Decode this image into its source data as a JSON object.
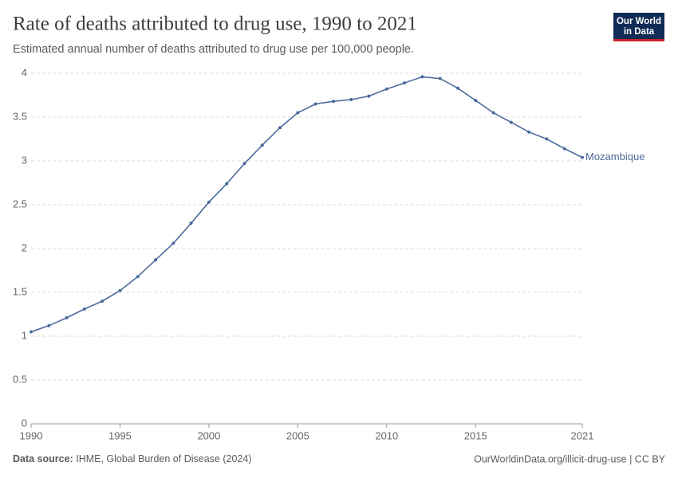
{
  "chart_data": {
    "type": "line",
    "title": "Rate of deaths attributed to drug use, 1990 to 2021",
    "subtitle": "Estimated annual number of deaths attributed to drug use per 100,000 people.",
    "source_label": "Data source:",
    "source": "IHME, Global Burden of Disease (2024)",
    "url": "OurWorldinData.org/illicit-drug-use | CC BY",
    "logo": [
      "Our World",
      "in Data"
    ],
    "x": [
      1990,
      1991,
      1992,
      1993,
      1994,
      1995,
      1996,
      1997,
      1998,
      1999,
      2000,
      2001,
      2002,
      2003,
      2004,
      2005,
      2006,
      2007,
      2008,
      2009,
      2010,
      2011,
      2012,
      2013,
      2014,
      2015,
      2016,
      2017,
      2018,
      2019,
      2020,
      2021
    ],
    "series": [
      {
        "name": "Mozambique",
        "color": "#4c6a9c",
        "values": [
          1.05,
          1.12,
          1.21,
          1.31,
          1.4,
          1.52,
          1.68,
          1.87,
          2.06,
          2.29,
          2.53,
          2.74,
          2.97,
          3.18,
          3.38,
          3.55,
          3.65,
          3.68,
          3.7,
          3.74,
          3.82,
          3.89,
          3.96,
          3.94,
          3.83,
          3.69,
          3.55,
          3.44,
          3.33,
          3.25,
          3.14,
          3.04
        ]
      }
    ],
    "xlim": [
      1990,
      2021
    ],
    "xticks": [
      1990,
      1995,
      2000,
      2005,
      2010,
      2015,
      2021
    ],
    "ylim": [
      0,
      4
    ],
    "yticks": [
      0,
      0.5,
      1,
      1.5,
      2,
      2.5,
      3,
      3.5,
      4
    ],
    "grid": true
  }
}
